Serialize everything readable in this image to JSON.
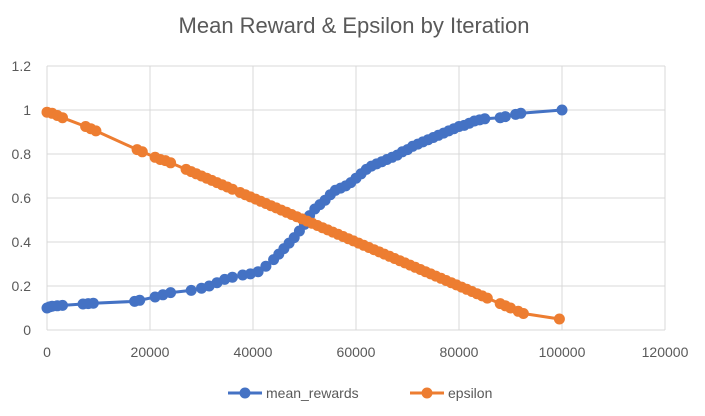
{
  "chart_data": {
    "type": "line",
    "title": "Mean Reward & Epsilon by Iteration",
    "xlabel": "",
    "ylabel": "",
    "xlim": [
      0,
      120000
    ],
    "ylim": [
      0,
      1.2
    ],
    "x_ticks": [
      0,
      20000,
      40000,
      60000,
      80000,
      100000,
      120000
    ],
    "x_tick_labels": [
      "0",
      "20000",
      "40000",
      "60000",
      "80000",
      "100000",
      "120000"
    ],
    "y_ticks": [
      0,
      0.2,
      0.4,
      0.6,
      0.8,
      1.0,
      1.2
    ],
    "y_tick_labels": [
      "0",
      "0.2",
      "0.4",
      "0.6",
      "0.8",
      "1",
      "1.2"
    ],
    "grid": true,
    "legend_position": "bottom",
    "series": [
      {
        "name": "mean_rewards",
        "color": "#4472c4",
        "points": [
          [
            0,
            0.1
          ],
          [
            500,
            0.105
          ],
          [
            1000,
            0.108
          ],
          [
            2000,
            0.11
          ],
          [
            3000,
            0.112
          ],
          [
            7000,
            0.118
          ],
          [
            8000,
            0.12
          ],
          [
            9000,
            0.122
          ],
          [
            17000,
            0.13
          ],
          [
            18000,
            0.135
          ],
          [
            21000,
            0.15
          ],
          [
            22500,
            0.16
          ],
          [
            24000,
            0.17
          ],
          [
            28000,
            0.18
          ],
          [
            30000,
            0.19
          ],
          [
            31500,
            0.2
          ],
          [
            33000,
            0.215
          ],
          [
            34500,
            0.23
          ],
          [
            36000,
            0.24
          ],
          [
            38000,
            0.25
          ],
          [
            39500,
            0.255
          ],
          [
            41000,
            0.265
          ],
          [
            42500,
            0.29
          ],
          [
            44000,
            0.32
          ],
          [
            45000,
            0.345
          ],
          [
            46000,
            0.37
          ],
          [
            47000,
            0.395
          ],
          [
            48000,
            0.42
          ],
          [
            49000,
            0.45
          ],
          [
            50000,
            0.48
          ],
          [
            51000,
            0.52
          ],
          [
            52000,
            0.55
          ],
          [
            53000,
            0.57
          ],
          [
            54000,
            0.59
          ],
          [
            55000,
            0.615
          ],
          [
            56000,
            0.635
          ],
          [
            57000,
            0.645
          ],
          [
            58000,
            0.655
          ],
          [
            59000,
            0.67
          ],
          [
            60000,
            0.69
          ],
          [
            61000,
            0.71
          ],
          [
            62000,
            0.73
          ],
          [
            63000,
            0.745
          ],
          [
            64000,
            0.755
          ],
          [
            65000,
            0.765
          ],
          [
            66000,
            0.775
          ],
          [
            67000,
            0.785
          ],
          [
            68000,
            0.795
          ],
          [
            69000,
            0.81
          ],
          [
            70000,
            0.82
          ],
          [
            71000,
            0.835
          ],
          [
            72000,
            0.845
          ],
          [
            73000,
            0.855
          ],
          [
            74000,
            0.865
          ],
          [
            75000,
            0.875
          ],
          [
            76000,
            0.885
          ],
          [
            77000,
            0.895
          ],
          [
            78000,
            0.905
          ],
          [
            79000,
            0.915
          ],
          [
            80000,
            0.925
          ],
          [
            81000,
            0.93
          ],
          [
            82000,
            0.94
          ],
          [
            83000,
            0.95
          ],
          [
            84000,
            0.955
          ],
          [
            85000,
            0.96
          ],
          [
            88000,
            0.965
          ],
          [
            89000,
            0.97
          ],
          [
            91000,
            0.98
          ],
          [
            92000,
            0.985
          ],
          [
            100000,
            1.0
          ]
        ]
      },
      {
        "name": "epsilon",
        "color": "#ed7d31",
        "points": [
          [
            0,
            0.99
          ],
          [
            1000,
            0.985
          ],
          [
            2000,
            0.975
          ],
          [
            3000,
            0.965
          ],
          [
            7500,
            0.925
          ],
          [
            8500,
            0.915
          ],
          [
            9500,
            0.905
          ],
          [
            17500,
            0.82
          ],
          [
            18500,
            0.81
          ],
          [
            21000,
            0.785
          ],
          [
            22000,
            0.775
          ],
          [
            23000,
            0.77
          ],
          [
            24000,
            0.76
          ],
          [
            27000,
            0.73
          ],
          [
            28000,
            0.72
          ],
          [
            29000,
            0.71
          ],
          [
            30000,
            0.7
          ],
          [
            31000,
            0.69
          ],
          [
            32000,
            0.68
          ],
          [
            33000,
            0.67
          ],
          [
            34000,
            0.66
          ],
          [
            35000,
            0.65
          ],
          [
            36000,
            0.64
          ],
          [
            37500,
            0.625
          ],
          [
            38500,
            0.615
          ],
          [
            39500,
            0.605
          ],
          [
            40500,
            0.595
          ],
          [
            41500,
            0.585
          ],
          [
            42500,
            0.575
          ],
          [
            43500,
            0.565
          ],
          [
            44500,
            0.555
          ],
          [
            45500,
            0.545
          ],
          [
            46500,
            0.535
          ],
          [
            47500,
            0.525
          ],
          [
            48500,
            0.515
          ],
          [
            49500,
            0.505
          ],
          [
            50500,
            0.495
          ],
          [
            51500,
            0.485
          ],
          [
            52500,
            0.475
          ],
          [
            53500,
            0.465
          ],
          [
            54500,
            0.455
          ],
          [
            55500,
            0.445
          ],
          [
            56500,
            0.435
          ],
          [
            57500,
            0.425
          ],
          [
            58500,
            0.415
          ],
          [
            59500,
            0.405
          ],
          [
            60500,
            0.395
          ],
          [
            61500,
            0.385
          ],
          [
            62500,
            0.375
          ],
          [
            63500,
            0.365
          ],
          [
            64500,
            0.355
          ],
          [
            65500,
            0.345
          ],
          [
            66500,
            0.335
          ],
          [
            67500,
            0.325
          ],
          [
            68500,
            0.315
          ],
          [
            69500,
            0.305
          ],
          [
            70500,
            0.295
          ],
          [
            71500,
            0.285
          ],
          [
            72500,
            0.275
          ],
          [
            73500,
            0.265
          ],
          [
            74500,
            0.255
          ],
          [
            75500,
            0.245
          ],
          [
            76500,
            0.235
          ],
          [
            77500,
            0.225
          ],
          [
            78500,
            0.215
          ],
          [
            79500,
            0.205
          ],
          [
            80500,
            0.195
          ],
          [
            81500,
            0.185
          ],
          [
            82500,
            0.175
          ],
          [
            83500,
            0.165
          ],
          [
            84500,
            0.155
          ],
          [
            85500,
            0.145
          ],
          [
            88000,
            0.12
          ],
          [
            89000,
            0.11
          ],
          [
            90000,
            0.1
          ],
          [
            91500,
            0.085
          ],
          [
            92500,
            0.075
          ],
          [
            99500,
            0.05
          ]
        ]
      }
    ]
  }
}
